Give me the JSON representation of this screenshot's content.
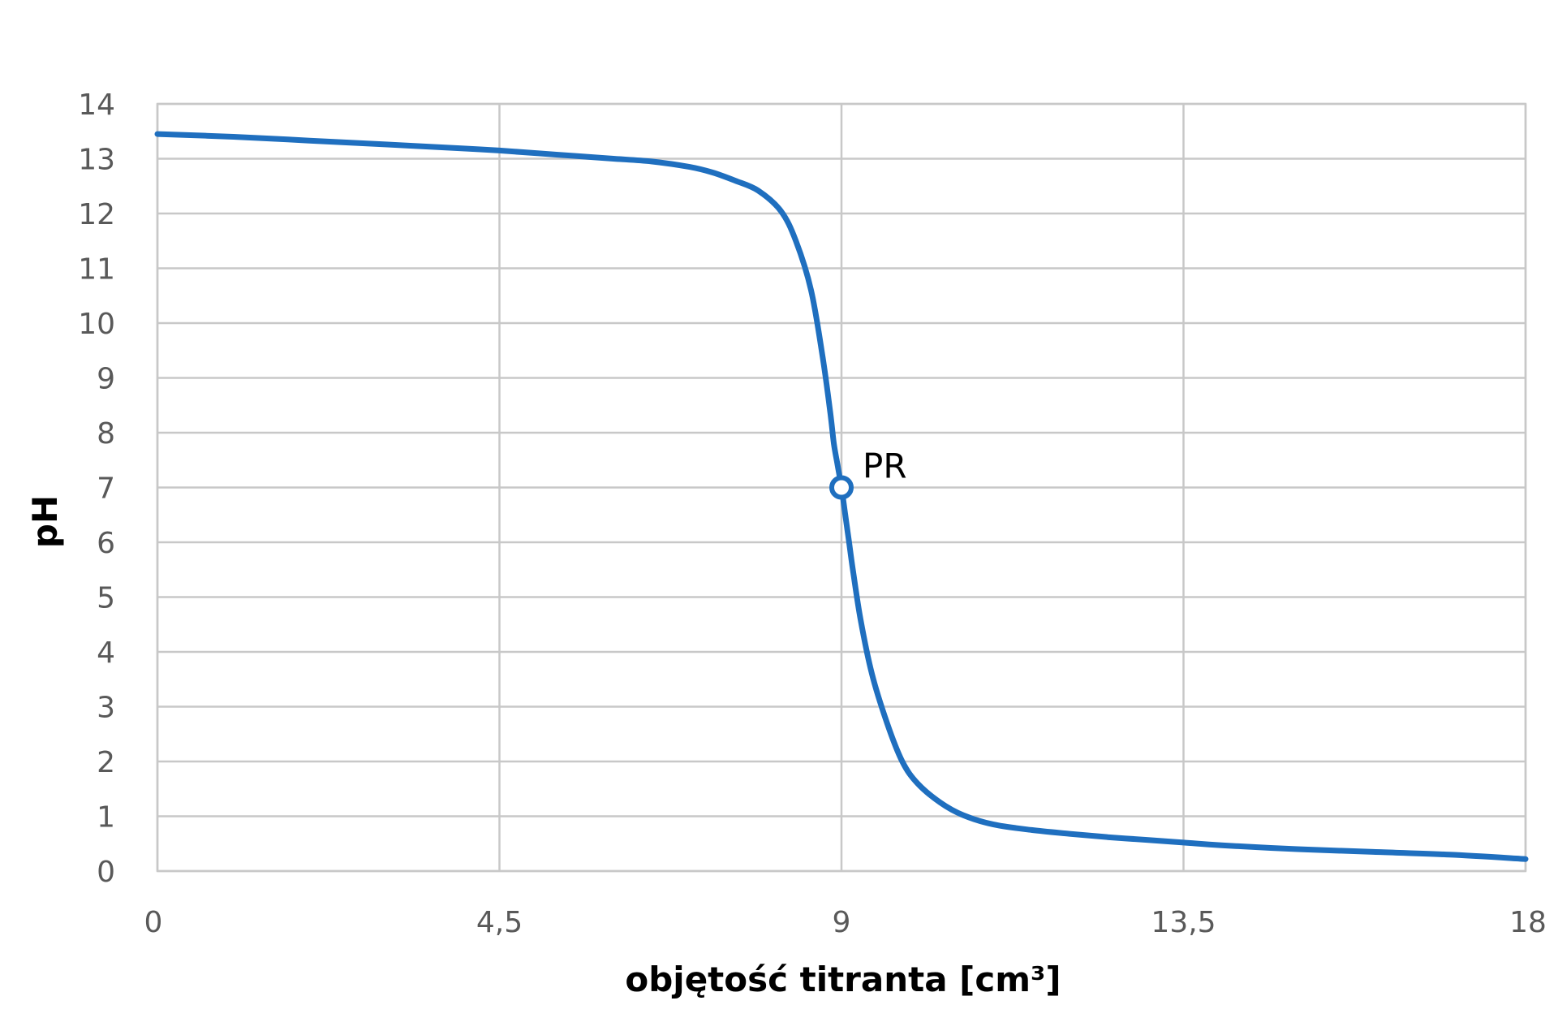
{
  "chart_data": {
    "type": "line",
    "xlabel": "objętość titranta [cm³]",
    "ylabel": "pH",
    "xlim": [
      0,
      18
    ],
    "ylim": [
      0,
      14
    ],
    "x_ticks": [
      "0",
      "4,5",
      "9",
      "13,5",
      "18"
    ],
    "x_tick_values": [
      0,
      4.5,
      9,
      13.5,
      18
    ],
    "y_ticks": [
      "0",
      "1",
      "2",
      "3",
      "4",
      "5",
      "6",
      "7",
      "8",
      "9",
      "10",
      "11",
      "12",
      "13",
      "14"
    ],
    "y_tick_values": [
      0,
      1,
      2,
      3,
      4,
      5,
      6,
      7,
      8,
      9,
      10,
      11,
      12,
      13,
      14
    ],
    "grid": true,
    "line_color": "#1f6fbf",
    "series": [
      {
        "x": [
          0,
          1,
          2,
          3,
          4,
          4.5,
          5,
          5.5,
          6,
          6.5,
          7,
          7.3,
          7.6,
          7.9,
          8.2,
          8.4,
          8.6,
          8.75,
          8.85,
          8.9,
          8.95,
          9,
          9.05,
          9.1,
          9.15,
          9.25,
          9.4,
          9.6,
          9.8,
          10,
          10.3,
          10.6,
          11,
          11.5,
          12,
          12.5,
          13,
          13.5,
          14,
          15,
          16,
          17,
          18
        ],
        "y": [
          13.45,
          13.4,
          13.33,
          13.26,
          13.19,
          13.15,
          13.1,
          13.05,
          13.0,
          12.95,
          12.85,
          12.75,
          12.6,
          12.42,
          12.05,
          11.5,
          10.6,
          9.4,
          8.4,
          7.8,
          7.4,
          7.0,
          6.5,
          6.0,
          5.5,
          4.6,
          3.6,
          2.7,
          2.0,
          1.6,
          1.25,
          1.02,
          0.85,
          0.75,
          0.68,
          0.62,
          0.57,
          0.52,
          0.47,
          0.4,
          0.35,
          0.3,
          0.22
        ]
      }
    ],
    "annotations": [
      {
        "label": "PR",
        "x": 9,
        "y": 7
      }
    ]
  }
}
